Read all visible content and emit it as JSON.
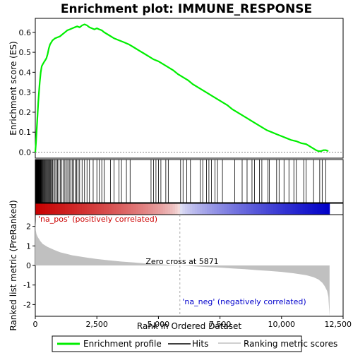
{
  "chart_data": {
    "type": "line",
    "title": "Enrichment plot: IMMUNE_RESPONSE",
    "top_panel": {
      "ylabel": "Enrichment score (ES)",
      "ylim": [
        -0.03,
        0.67
      ],
      "yticks": [
        "0.0",
        "0.1",
        "0.2",
        "0.3",
        "0.4",
        "0.5",
        "0.6"
      ],
      "ytick_values": [
        0.0,
        0.1,
        0.2,
        0.3,
        0.4,
        0.5,
        0.6
      ],
      "series": [
        {
          "name": "Enrichment profile",
          "color": "#00ee00",
          "x": [
            0,
            30,
            60,
            90,
            120,
            150,
            180,
            220,
            260,
            300,
            350,
            400,
            450,
            500,
            550,
            600,
            650,
            700,
            800,
            900,
            1000,
            1100,
            1200,
            1300,
            1400,
            1500,
            1600,
            1700,
            1800,
            1900,
            2000,
            2100,
            2200,
            2300,
            2400,
            2500,
            2600,
            2700,
            2800,
            3000,
            3200,
            3400,
            3600,
            3800,
            4000,
            4200,
            4400,
            4600,
            4800,
            5000,
            5200,
            5400,
            5600,
            5800,
            6000,
            6200,
            6400,
            6600,
            6800,
            7000,
            7200,
            7400,
            7600,
            7800,
            8000,
            8200,
            8400,
            8600,
            8800,
            9000,
            9200,
            9400,
            9600,
            9800,
            10000,
            10200,
            10400,
            10600,
            10800,
            11000,
            11200,
            11400,
            11500,
            11600,
            11700,
            11800,
            11900
          ],
          "y": [
            0.0,
            0.05,
            0.12,
            0.18,
            0.25,
            0.3,
            0.35,
            0.4,
            0.43,
            0.44,
            0.45,
            0.46,
            0.47,
            0.49,
            0.52,
            0.54,
            0.55,
            0.56,
            0.57,
            0.575,
            0.58,
            0.59,
            0.6,
            0.61,
            0.615,
            0.62,
            0.625,
            0.63,
            0.625,
            0.635,
            0.64,
            0.635,
            0.625,
            0.62,
            0.615,
            0.62,
            0.615,
            0.61,
            0.6,
            0.585,
            0.57,
            0.56,
            0.55,
            0.54,
            0.525,
            0.51,
            0.495,
            0.48,
            0.465,
            0.455,
            0.44,
            0.425,
            0.41,
            0.39,
            0.375,
            0.36,
            0.34,
            0.325,
            0.31,
            0.295,
            0.28,
            0.265,
            0.25,
            0.235,
            0.215,
            0.2,
            0.185,
            0.17,
            0.155,
            0.14,
            0.125,
            0.11,
            0.1,
            0.09,
            0.08,
            0.07,
            0.06,
            0.055,
            0.045,
            0.04,
            0.025,
            0.01,
            0.005,
            0.005,
            0.01,
            0.01,
            0.005
          ]
        }
      ]
    },
    "hits_panel": {
      "hit_positions": [
        5,
        15,
        25,
        35,
        45,
        55,
        65,
        75,
        85,
        95,
        105,
        115,
        125,
        135,
        145,
        160,
        175,
        190,
        205,
        220,
        240,
        260,
        280,
        300,
        330,
        360,
        390,
        420,
        450,
        480,
        510,
        540,
        570,
        600,
        630,
        660,
        700,
        750,
        800,
        850,
        900,
        960,
        1020,
        1080,
        1140,
        1200,
        1260,
        1320,
        1380,
        1440,
        1500,
        1560,
        1620,
        1680,
        1740,
        1800,
        1900,
        2000,
        2100,
        2200,
        2350,
        2500,
        2600,
        2700,
        2800,
        3050,
        3200,
        3400,
        3500,
        3700,
        3850,
        4700,
        4800,
        4900,
        5000,
        5100,
        5300,
        5400,
        5900,
        6000,
        6150,
        6300,
        6700,
        6800,
        6950,
        7050,
        7150,
        7300,
        7400,
        7600,
        8100,
        8400,
        8600,
        8800,
        8900,
        9100,
        9200,
        9450,
        9500,
        9800,
        9900,
        10100,
        10300,
        10500,
        10600,
        10900,
        11000,
        11300,
        11550,
        11650,
        11800
      ]
    },
    "bottom_panel": {
      "ylabel": "Ranked list metric (PreRanked)",
      "xlabel": "Rank in Ordered Dataset",
      "ylim": [
        -2.6,
        2.6
      ],
      "yticks": [
        "2",
        "1",
        "0",
        "-1",
        "-2"
      ],
      "ytick_values": [
        2,
        1,
        0,
        -1,
        -2
      ],
      "xlim": [
        0,
        12500
      ],
      "xticks": [
        "0",
        "2,500",
        "5,000",
        "7,500",
        "10,000",
        "12,500"
      ],
      "xtick_values": [
        0,
        2500,
        5000,
        7500,
        10000,
        12500
      ],
      "metric_x": [
        0,
        20,
        50,
        100,
        200,
        300,
        500,
        750,
        1000,
        1500,
        2000,
        2500,
        3000,
        3500,
        4000,
        4500,
        5000,
        5500,
        5871,
        6500,
        7000,
        7500,
        8000,
        8500,
        9000,
        9500,
        10000,
        10500,
        11000,
        11300,
        11500,
        11650,
        11750,
        11850,
        11900,
        11950
      ],
      "metric_y": [
        2.3,
        1.8,
        1.6,
        1.45,
        1.25,
        1.1,
        0.95,
        0.8,
        0.68,
        0.52,
        0.42,
        0.33,
        0.26,
        0.2,
        0.15,
        0.1,
        0.06,
        0.03,
        0.0,
        -0.05,
        -0.08,
        -0.11,
        -0.15,
        -0.19,
        -0.24,
        -0.28,
        -0.33,
        -0.4,
        -0.5,
        -0.6,
        -0.72,
        -0.88,
        -1.05,
        -1.3,
        -1.6,
        -2.6
      ],
      "zero_cross_label": "Zero cross at 5871",
      "zero_cross_rank": 5871,
      "pos_label": "'na_pos' (positively correlated)",
      "neg_label": "'na_neg' (negatively correlated)",
      "pos_color": "#cc0000",
      "neg_color": "#0000cc"
    },
    "legend": {
      "placement": "bottom",
      "items": [
        {
          "label": "Enrichment profile",
          "color": "#00ee00"
        },
        {
          "label": "Hits",
          "color": "#000000"
        },
        {
          "label": "Ranking metric scores",
          "color": "#c0c0c0"
        }
      ]
    }
  }
}
